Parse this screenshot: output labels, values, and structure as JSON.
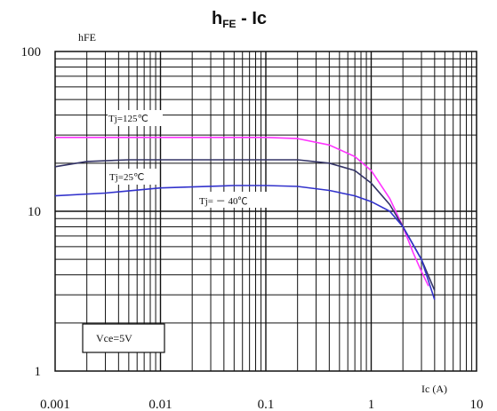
{
  "chart_data": {
    "type": "line",
    "title": "hFE - Ic",
    "title_main": "h",
    "title_sub": "FE",
    "title_tail": " - Ic",
    "xlabel": "Ic (A)",
    "ylabel": "hFE",
    "x_scale": "log",
    "y_scale": "log",
    "xlim": [
      0.001,
      10
    ],
    "ylim": [
      1,
      100
    ],
    "grid": true,
    "x_ticks": [
      "0.001",
      "0.01",
      "0.1",
      "1",
      "10"
    ],
    "y_ticks": [
      "1",
      "10",
      "100"
    ],
    "note": "Vce=5V",
    "series": [
      {
        "name": "Tj=125℃",
        "color": "#ff33ff",
        "points": [
          [
            0.001,
            29
          ],
          [
            0.003,
            29
          ],
          [
            0.01,
            29
          ],
          [
            0.03,
            29
          ],
          [
            0.1,
            29
          ],
          [
            0.2,
            28.5
          ],
          [
            0.4,
            26
          ],
          [
            0.7,
            22
          ],
          [
            1.0,
            18
          ],
          [
            1.5,
            12
          ],
          [
            2.0,
            8
          ],
          [
            2.5,
            5.5
          ],
          [
            3.0,
            4.2
          ],
          [
            3.5,
            3.4
          ]
        ]
      },
      {
        "name": "Tj=25℃",
        "color": "#333366",
        "points": [
          [
            0.001,
            19
          ],
          [
            0.002,
            20.5
          ],
          [
            0.005,
            21
          ],
          [
            0.01,
            21
          ],
          [
            0.05,
            21
          ],
          [
            0.1,
            21
          ],
          [
            0.2,
            21
          ],
          [
            0.4,
            20
          ],
          [
            0.7,
            18
          ],
          [
            1.0,
            15
          ],
          [
            1.5,
            11
          ],
          [
            2.0,
            8
          ],
          [
            3.0,
            5
          ],
          [
            4.0,
            3.2
          ]
        ]
      },
      {
        "name": "Tj= － 40℃",
        "color": "#3333cc",
        "points": [
          [
            0.001,
            12.5
          ],
          [
            0.003,
            13
          ],
          [
            0.01,
            14
          ],
          [
            0.05,
            14.5
          ],
          [
            0.1,
            14.5
          ],
          [
            0.2,
            14.3
          ],
          [
            0.4,
            13.5
          ],
          [
            0.7,
            12.5
          ],
          [
            1.0,
            11.5
          ],
          [
            1.5,
            10
          ],
          [
            2.0,
            8
          ],
          [
            3.0,
            5
          ],
          [
            4.0,
            2.8
          ]
        ]
      }
    ]
  }
}
